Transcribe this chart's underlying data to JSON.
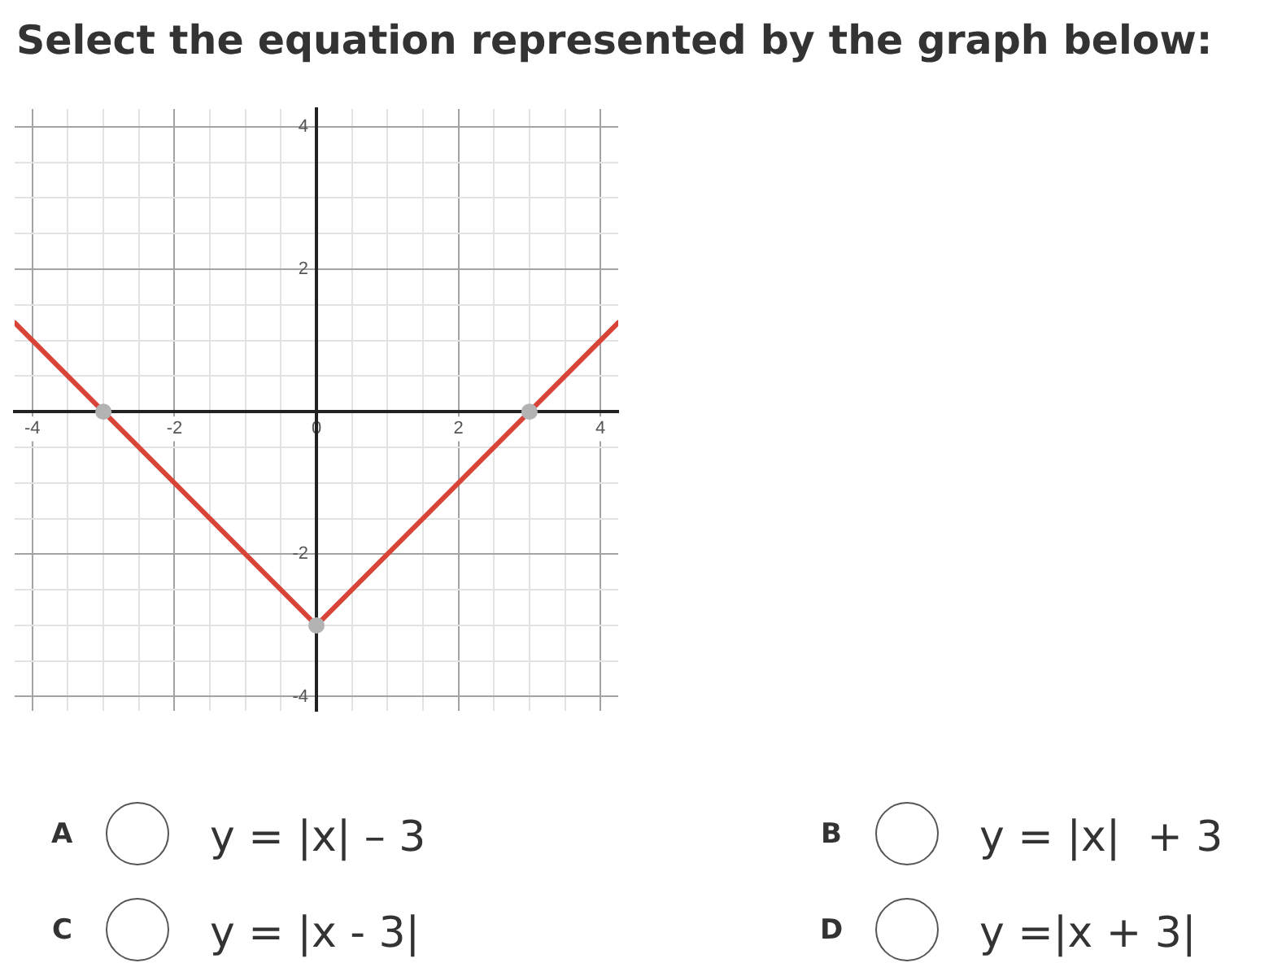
{
  "chart_data": {
    "type": "line",
    "title": "Select the equation represented by the graph below:",
    "xlim": [
      -4.25,
      4.25
    ],
    "ylim": [
      -4.2,
      4.25
    ],
    "xticks": [
      -4,
      {
        "value": -3.5,
        "label": null
      },
      {
        "value": -3,
        "label": null
      },
      {
        "value": -2.5,
        "label": null
      },
      -2,
      {
        "value": -1.5,
        "label": null
      },
      {
        "value": -1,
        "label": null
      },
      {
        "value": -0.5,
        "label": null
      },
      0,
      {
        "value": 0.5,
        "label": null
      },
      {
        "value": 1,
        "label": null
      },
      {
        "value": 1.5,
        "label": null
      },
      2,
      {
        "value": 2.5,
        "label": null
      },
      {
        "value": 3,
        "label": null
      },
      {
        "value": 3.5,
        "label": null
      },
      4
    ],
    "yticks": [
      -4,
      {
        "value": -3.5,
        "label": null
      },
      {
        "value": -3,
        "label": null
      },
      {
        "value": -2.5,
        "label": null
      },
      -2,
      {
        "value": -1.5,
        "label": null
      },
      {
        "value": -1,
        "label": null
      },
      {
        "value": -0.5,
        "label": null
      },
      {
        "value": 0,
        "label": null
      },
      {
        "value": 0.5,
        "label": null
      },
      {
        "value": 1,
        "label": null
      },
      {
        "value": 1.5,
        "label": null
      },
      2,
      {
        "value": 2.5,
        "label": null
      },
      {
        "value": 3,
        "label": null
      },
      {
        "value": 3.5,
        "label": null
      },
      4
    ],
    "grid": true,
    "series": [
      {
        "color": "#d84437",
        "x": [
          -4.25,
          0,
          4.25
        ],
        "values": [
          1.25,
          -3,
          1.25
        ],
        "marker": "none"
      },
      {
        "type": "scatter",
        "color": "#b3b3b3",
        "x": [
          -3,
          0,
          3
        ],
        "values": [
          0,
          -3,
          0
        ],
        "marker": "circle"
      }
    ],
    "annotations": [
      "A",
      "y = |x| – 3",
      "B",
      "y = |x|  + 3",
      "C",
      "y = |x - 3|",
      "D",
      "y =|x + 3|"
    ]
  }
}
